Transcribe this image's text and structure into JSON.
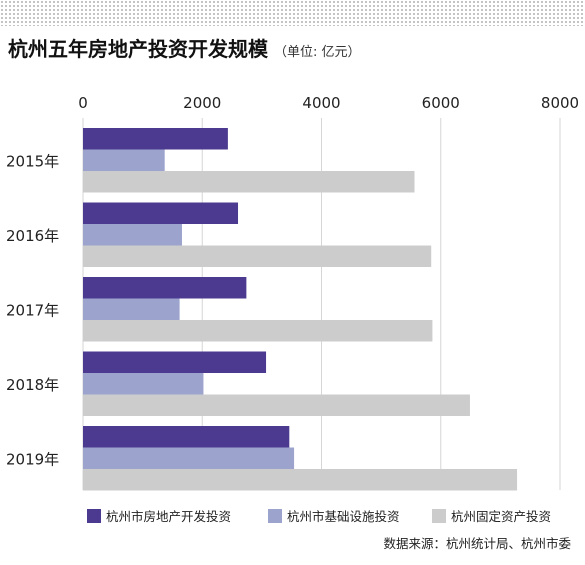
{
  "chart_data": {
    "type": "bar",
    "orientation": "horizontal",
    "title": "杭州五年房地产投资开发规模",
    "unit": "（单位: 亿元）",
    "categories": [
      "2015年",
      "2016年",
      "2017年",
      "2018年",
      "2019年"
    ],
    "series": [
      {
        "name": "杭州市房地产开发投资",
        "color": "#4b3a8f",
        "values": [
          2430,
          2600,
          2740,
          3070,
          3460
        ]
      },
      {
        "name": "杭州市基础设施投资",
        "color": "#9ca4cd",
        "values": [
          1370,
          1660,
          1620,
          2020,
          3540
        ]
      },
      {
        "name": "杭州固定资产投资",
        "color": "#cccccc",
        "values": [
          5560,
          5840,
          5860,
          6490,
          7280
        ]
      }
    ],
    "xlim": [
      0,
      8000
    ],
    "xticks": [
      "0",
      "2000",
      "4000",
      "6000",
      "8000"
    ],
    "grid": true,
    "legend_position": "bottom"
  },
  "source": "数据来源：杭州统计局、杭州市委"
}
